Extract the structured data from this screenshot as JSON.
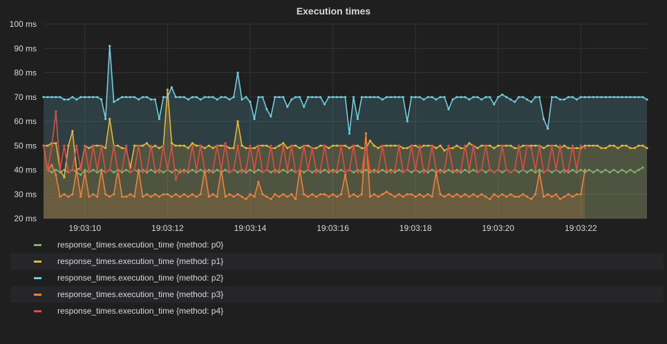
{
  "panel": {
    "title": "Execution times"
  },
  "chart_data": {
    "type": "line",
    "title": "Execution times",
    "xlabel": "",
    "ylabel": "",
    "ylim": [
      20,
      100
    ],
    "y_unit": "ms",
    "y_ticks": [
      "100 ms",
      "90 ms",
      "80 ms",
      "70 ms",
      "60 ms",
      "50 ms",
      "40 ms",
      "30 ms",
      "20 ms"
    ],
    "y_tick_values": [
      100,
      90,
      80,
      70,
      60,
      50,
      40,
      30,
      20
    ],
    "x_ticks": [
      "19:03:10",
      "19:03:12",
      "19:03:14",
      "19:03:16",
      "19:03:18",
      "19:03:20",
      "19:03:22"
    ],
    "x_start": "19:03:09.0",
    "x_end": "19:03:23.6",
    "x_step_seconds": 0.1,
    "grid": true,
    "legend_position": "bottom",
    "series": [
      {
        "name": "response_times.execution_time {method: p0}",
        "color": "#7eb26d",
        "fill": false,
        "values": [
          50,
          40,
          39,
          40,
          39,
          40,
          39,
          40,
          39,
          38,
          40,
          39,
          40,
          39,
          40,
          39,
          40,
          39,
          40,
          39,
          40,
          39,
          40,
          39,
          40,
          39,
          40,
          39,
          40,
          39,
          40,
          39,
          40,
          39,
          40,
          39,
          40,
          39,
          40,
          39,
          40,
          39,
          40,
          39,
          40,
          39,
          40,
          39,
          40,
          39,
          40,
          39,
          40,
          39,
          40,
          39,
          40,
          39,
          40,
          39,
          40,
          39,
          40,
          39,
          40,
          39,
          40,
          39,
          40,
          39,
          40,
          39,
          40,
          39,
          40,
          39,
          40,
          39,
          40,
          39,
          40,
          39,
          40,
          39,
          40,
          39,
          40,
          39,
          40,
          39,
          40,
          39,
          40,
          39,
          40,
          39,
          40,
          39,
          40,
          39,
          40,
          39,
          40,
          39,
          40,
          39,
          40,
          39,
          40,
          39,
          40,
          39,
          40,
          39,
          40,
          39,
          40,
          39,
          40,
          39,
          40,
          39,
          40,
          39,
          40,
          39,
          40,
          39,
          40,
          39,
          40,
          39,
          40,
          39,
          40,
          39,
          40,
          39,
          40,
          39,
          40,
          39,
          40,
          39,
          40,
          41
        ]
      },
      {
        "name": "response_times.execution_time {method: p1}",
        "color": "#eab839",
        "fill": true,
        "values": [
          50,
          50,
          51,
          51,
          40,
          37,
          50,
          56,
          40,
          41,
          50,
          49,
          50,
          50,
          50,
          49,
          61,
          50,
          50,
          49,
          49,
          41,
          50,
          50,
          50,
          51,
          49,
          50,
          49,
          50,
          73,
          51,
          50,
          50,
          50,
          49,
          51,
          50,
          50,
          49,
          50,
          49,
          50,
          50,
          50,
          49,
          49,
          60,
          50,
          49,
          49,
          49,
          50,
          50,
          50,
          49,
          49,
          50,
          51,
          49,
          50,
          50,
          49,
          50,
          50,
          49,
          49,
          50,
          50,
          49,
          50,
          50,
          50,
          50,
          49,
          50,
          50,
          49,
          49,
          52,
          50,
          49,
          50,
          50,
          50,
          50,
          50,
          49,
          49,
          50,
          50,
          49,
          50,
          50,
          50,
          49,
          50,
          48,
          49,
          49,
          50,
          49,
          49,
          51,
          50,
          49,
          50,
          50,
          50,
          49,
          50,
          50,
          50,
          50,
          49,
          49,
          50,
          50,
          50,
          50,
          50,
          49,
          50,
          50,
          50,
          49,
          50,
          49,
          49,
          49,
          49,
          50,
          50,
          50,
          50,
          49,
          49,
          50,
          50,
          49,
          50,
          50,
          49,
          49,
          50,
          50,
          49
        ]
      },
      {
        "name": "response_times.execution_time {method: p2}",
        "color": "#6ed0e0",
        "fill": true,
        "values": [
          70,
          70,
          70,
          70,
          70,
          69,
          69,
          70,
          69,
          70,
          70,
          70,
          70,
          70,
          69,
          61,
          91,
          68,
          69,
          70,
          70,
          70,
          70,
          69,
          70,
          70,
          69,
          69,
          61,
          70,
          70,
          74,
          70,
          70,
          70,
          69,
          70,
          70,
          69,
          70,
          70,
          70,
          69,
          70,
          70,
          69,
          70,
          80,
          69,
          70,
          68,
          61,
          70,
          70,
          65,
          62,
          70,
          70,
          70,
          66,
          69,
          70,
          70,
          66,
          70,
          70,
          70,
          70,
          67,
          70,
          70,
          70,
          70,
          70,
          55,
          70,
          61,
          70,
          70,
          70,
          70,
          70,
          69,
          70,
          70,
          70,
          70,
          70,
          60,
          70,
          70,
          70,
          69,
          70,
          70,
          69,
          70,
          70,
          65,
          69,
          70,
          70,
          70,
          69,
          70,
          70,
          69,
          70,
          70,
          67,
          70,
          71,
          70,
          69,
          68,
          70,
          70,
          69,
          68,
          70,
          70,
          61,
          57,
          70,
          70,
          69,
          69,
          70,
          70,
          69,
          70,
          70,
          70,
          70,
          70,
          70,
          70,
          70,
          70,
          70,
          70,
          70,
          70,
          70,
          70,
          70,
          69
        ]
      },
      {
        "name": "response_times.execution_time {method: p3}",
        "color": "#ef843c",
        "fill": true,
        "values": [
          50,
          40,
          42,
          38,
          29,
          30,
          29,
          30,
          40,
          29,
          39,
          29,
          30,
          29,
          40,
          30,
          29,
          30,
          40,
          29,
          29,
          30,
          29,
          40,
          29,
          30,
          29,
          30,
          29,
          30,
          30,
          29,
          30,
          29,
          30,
          29,
          30,
          29,
          30,
          40,
          29,
          30,
          29,
          40,
          29,
          30,
          29,
          30,
          29,
          28,
          30,
          29,
          35,
          30,
          29,
          28,
          30,
          29,
          30,
          29,
          30,
          28,
          40,
          30,
          29,
          30,
          29,
          30,
          30,
          29,
          30,
          29,
          30,
          38,
          29,
          30,
          29,
          30,
          55,
          29,
          30,
          29,
          30,
          31,
          30,
          29,
          30,
          29,
          30,
          30,
          29,
          30,
          29,
          30,
          29,
          39,
          30,
          29,
          30,
          29,
          30,
          29,
          30,
          29,
          30,
          29,
          30,
          29,
          28,
          30,
          29,
          30,
          29,
          30,
          29,
          29,
          30,
          29,
          28,
          30,
          39,
          29,
          30,
          29,
          30,
          28,
          29,
          30,
          29,
          30,
          30,
          40
        ]
      },
      {
        "name": "response_times.execution_time {method: p4}",
        "color": "#e24d42",
        "fill": false,
        "values": [
          50,
          40,
          50,
          64,
          40,
          50,
          39,
          40,
          50,
          40,
          50,
          39,
          50,
          40,
          50,
          39,
          40,
          50,
          39,
          40,
          50,
          39,
          40,
          50,
          39,
          40,
          50,
          40,
          39,
          50,
          40,
          50,
          36,
          40,
          39,
          40,
          50,
          40,
          50,
          40,
          39,
          40,
          50,
          40,
          51,
          39,
          40,
          50,
          39,
          40,
          50,
          40,
          50,
          39,
          40,
          50,
          39,
          40,
          50,
          40,
          50,
          39,
          40,
          50,
          40,
          49,
          39,
          40,
          50,
          40,
          39,
          40,
          50,
          39,
          40,
          50,
          39,
          40,
          50,
          40,
          39,
          40,
          50,
          40,
          39,
          40,
          50,
          39,
          40,
          50,
          40,
          50,
          39,
          40,
          50,
          40,
          39,
          40,
          50,
          40,
          39,
          40,
          50,
          40,
          50,
          39,
          40,
          50,
          40,
          39,
          40,
          50,
          40,
          39,
          40,
          50,
          40,
          50,
          49,
          40,
          50,
          39,
          40,
          50,
          40,
          50,
          39,
          40,
          50,
          40,
          50,
          49
        ]
      }
    ]
  }
}
